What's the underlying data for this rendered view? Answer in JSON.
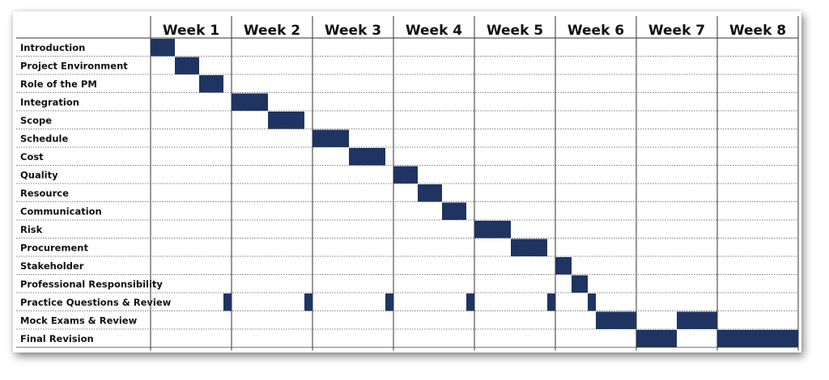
{
  "chart_data": {
    "type": "gantt",
    "bar_color": "#1f3461",
    "weeks": [
      "Week 1",
      "Week 2",
      "Week 3",
      "Week 4",
      "Week 5",
      "Week 6",
      "Week 7",
      "Week 8"
    ],
    "tasks": [
      {
        "name": "Introduction",
        "segments": [
          [
            0.0,
            0.3
          ]
        ]
      },
      {
        "name": "Project Environment",
        "segments": [
          [
            0.3,
            0.6
          ]
        ]
      },
      {
        "name": "Role of the PM",
        "segments": [
          [
            0.6,
            0.9
          ]
        ]
      },
      {
        "name": "Integration",
        "segments": [
          [
            1.0,
            1.45
          ]
        ]
      },
      {
        "name": "Scope",
        "segments": [
          [
            1.45,
            1.9
          ]
        ]
      },
      {
        "name": "Schedule",
        "segments": [
          [
            2.0,
            2.45
          ]
        ]
      },
      {
        "name": "Cost",
        "segments": [
          [
            2.45,
            2.9
          ]
        ]
      },
      {
        "name": "Quality",
        "segments": [
          [
            3.0,
            3.3
          ]
        ]
      },
      {
        "name": "Resource",
        "segments": [
          [
            3.3,
            3.6
          ]
        ]
      },
      {
        "name": "Communication",
        "segments": [
          [
            3.6,
            3.9
          ]
        ]
      },
      {
        "name": "Risk",
        "segments": [
          [
            4.0,
            4.45
          ]
        ]
      },
      {
        "name": "Procurement",
        "segments": [
          [
            4.45,
            4.9
          ]
        ]
      },
      {
        "name": "Stakeholder",
        "segments": [
          [
            5.0,
            5.2
          ]
        ]
      },
      {
        "name": "Professional Responsibility",
        "segments": [
          [
            5.2,
            5.4
          ]
        ]
      },
      {
        "name": "Practice Questions & Review",
        "segments": [
          [
            0.9,
            1.0
          ],
          [
            1.9,
            2.0
          ],
          [
            2.9,
            3.0
          ],
          [
            3.9,
            4.0
          ],
          [
            4.9,
            5.0
          ],
          [
            5.4,
            5.5
          ]
        ]
      },
      {
        "name": "Mock Exams & Review",
        "segments": [
          [
            5.5,
            6.0
          ],
          [
            6.5,
            7.0
          ]
        ]
      },
      {
        "name": "Final Revision",
        "segments": [
          [
            6.0,
            6.5
          ],
          [
            7.0,
            8.0
          ]
        ]
      }
    ]
  }
}
